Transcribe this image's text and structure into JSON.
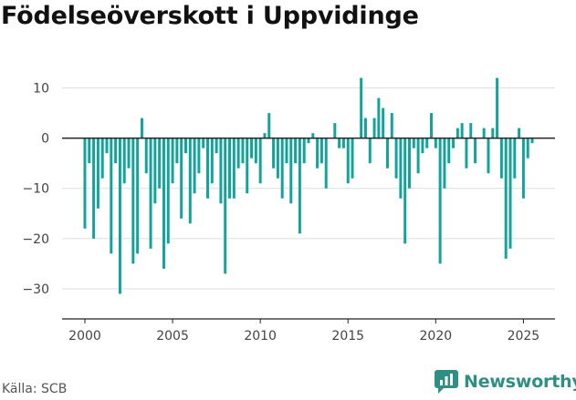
{
  "title": "Födelseöverskott i Uppvidinge",
  "source": "Källa: SCB",
  "brand": {
    "name": "Newsworthy"
  },
  "colors": {
    "bar": "#12a39a",
    "zero_line": "#222222",
    "grid": "#dddddd",
    "brand": "#2f8f82"
  },
  "chart_data": {
    "type": "bar",
    "title": "Födelseöverskott i Uppvidinge",
    "xlabel": "",
    "ylabel": "",
    "x_start": 2000.0,
    "x_step": 0.25,
    "x_ticks": [
      2000,
      2005,
      2010,
      2015,
      2020,
      2025
    ],
    "y_ticks": [
      10,
      0,
      -10,
      -20,
      -30
    ],
    "ylim": [
      -36,
      13
    ],
    "xlim": [
      1998.7,
      2026.8
    ],
    "grid": true,
    "values": [
      -18,
      -5,
      -20,
      -14,
      -8,
      -3,
      -23,
      -5,
      -31,
      -9,
      -6,
      -25,
      -23,
      4,
      -7,
      -22,
      -13,
      -10,
      -26,
      -21,
      -9,
      -5,
      -16,
      -3,
      -17,
      -11,
      -7,
      -2,
      -12,
      -9,
      -3,
      -13,
      -27,
      -12,
      -12,
      -6,
      -5,
      -11,
      -4,
      -5,
      -9,
      1,
      5,
      -6,
      -8,
      -12,
      -5,
      -13,
      -5,
      -19,
      -5,
      -1,
      1,
      -6,
      -5,
      -10,
      0,
      3,
      -2,
      -2,
      -9,
      -8,
      0,
      12,
      4,
      -5,
      4,
      8,
      6,
      -6,
      5,
      -8,
      -12,
      -21,
      -10,
      -2,
      -7,
      -3,
      -2,
      5,
      -2,
      -25,
      -10,
      -5,
      -2,
      2,
      3,
      -6,
      3,
      -5,
      0,
      2,
      -7,
      2,
      12,
      -8,
      -24,
      -22,
      -8,
      2,
      -12,
      -4,
      -1
    ]
  }
}
